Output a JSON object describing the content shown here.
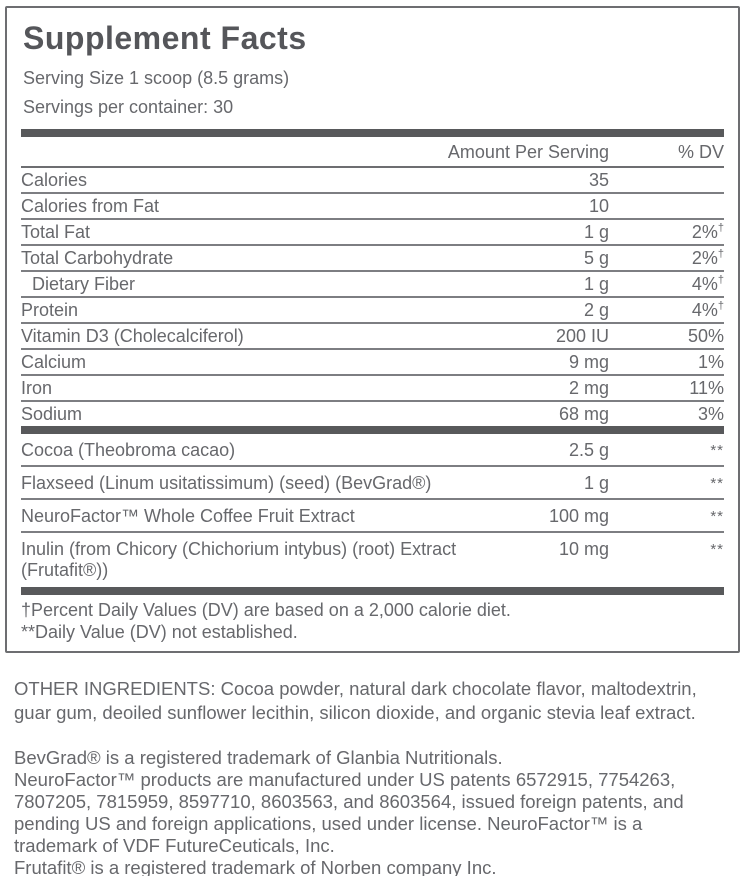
{
  "label": {
    "title": "Supplement Facts",
    "serving_size": "Serving Size 1 scoop (8.5 grams)",
    "servings_per_container": "Servings per container: 30",
    "header": {
      "amount": "Amount Per Serving",
      "dv": "% DV"
    },
    "nutrients": [
      {
        "name": "Calories",
        "amount": "35",
        "dv": ""
      },
      {
        "name": "Calories from Fat",
        "amount": "10",
        "dv": ""
      },
      {
        "name": "Total Fat",
        "amount": "1 g",
        "dv": "2%",
        "dv_sup": "†"
      },
      {
        "name": "Total Carbohydrate",
        "amount": "5 g",
        "dv": "2%",
        "dv_sup": "†"
      },
      {
        "name": "Dietary Fiber",
        "amount": "1 g",
        "dv": "4%",
        "dv_sup": "†"
      },
      {
        "name": "Protein",
        "amount": "2 g",
        "dv": "4%",
        "dv_sup": "†"
      },
      {
        "name": "Vitamin D3 (Cholecalciferol)",
        "amount": "200 IU",
        "dv": "50%"
      },
      {
        "name": "Calcium",
        "amount": "9 mg",
        "dv": "1%"
      },
      {
        "name": "Iron",
        "amount": "2 mg",
        "dv": "11%"
      },
      {
        "name": "Sodium",
        "amount": "68 mg",
        "dv": "3%"
      }
    ],
    "botanicals": [
      {
        "name": "Cocoa (Theobroma cacao)",
        "amount": "2.5 g",
        "dv": "**"
      },
      {
        "name": "Flaxseed (Linum usitatissimum) (seed) (BevGrad®)",
        "amount": "1 g",
        "dv": "**"
      },
      {
        "name": "NeuroFactor™ Whole Coffee Fruit Extract",
        "amount": "100 mg",
        "dv": "**"
      },
      {
        "name": "Inulin (from Chicory (Chichorium intybus) (root) Extract (Frutafit®))",
        "amount": "10 mg",
        "dv": "**"
      }
    ],
    "footnotes": [
      "†Percent Daily Values (DV) are based on a 2,000 calorie diet.",
      "**Daily Value (DV) not established."
    ]
  },
  "other_ingredients": {
    "heading": "OTHER INGREDIENTS:",
    "text": " Cocoa powder, natural dark chocolate flavor, maltodextrin, guar gum, deoiled sunflower lecithin, silicon dioxide, and organic stevia leaf extract."
  },
  "trademarks": [
    "BevGrad® is a registered trademark of Glanbia Nutritionals.",
    "NeuroFactor™ products are manufactured under US patents 6572915, 7754263, 7807205, 7815959, 8597710, 8603563, and 8603564, issued foreign patents, and pending US and foreign applications, used under license. NeuroFactor™ is a trademark of VDF FutureCeuticals, Inc.",
    "Frutafit® is a registered trademark of Norben company Inc."
  ],
  "colors": {
    "text_gray": "#67686c",
    "title_gray": "#55565a",
    "bar_gray": "#58595b",
    "rule_gray": "#7d7e82",
    "border_gray": "#6d6e71"
  }
}
